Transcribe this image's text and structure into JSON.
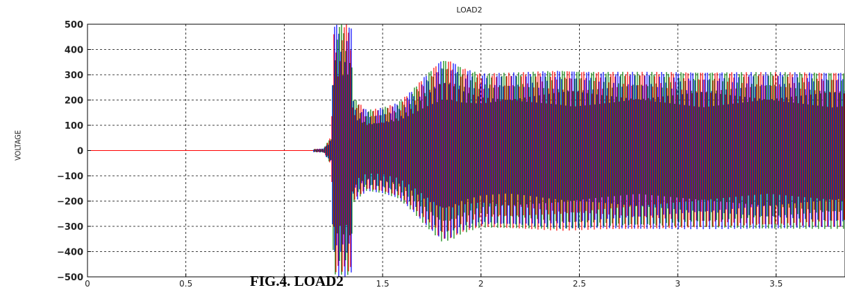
{
  "chart_data": {
    "type": "line",
    "title": "LOAD2",
    "xlabel": "",
    "ylabel": "VOLTAGE",
    "xlim": [
      0,
      3.85
    ],
    "ylim": [
      -500,
      500
    ],
    "x_ticks": [
      0,
      0.5,
      1,
      1.5,
      2,
      2.5,
      3,
      3.5
    ],
    "x_tick_labels": [
      "0",
      "0.5",
      "1",
      "1.5",
      "2",
      "2.5",
      "3",
      "3.5"
    ],
    "y_ticks": [
      500,
      400,
      300,
      200,
      100,
      0,
      -100,
      -200,
      -300,
      -400,
      -500
    ],
    "y_tick_labels": [
      "500",
      "400",
      "300",
      "200",
      "100",
      "0",
      "−100",
      "−200",
      "−300",
      "−400",
      "−500"
    ],
    "grid": true,
    "series_colors": [
      "#0000ff",
      "#008000",
      "#ff0000"
    ],
    "envelope": [
      {
        "t": 0.0,
        "amp": 0
      },
      {
        "t": 1.0,
        "amp": 2
      },
      {
        "t": 1.2,
        "amp": 8
      },
      {
        "t": 1.24,
        "amp": 60
      },
      {
        "t": 1.25,
        "amp": 500
      },
      {
        "t": 1.34,
        "amp": 500
      },
      {
        "t": 1.35,
        "amp": 210
      },
      {
        "t": 1.42,
        "amp": 160
      },
      {
        "t": 1.5,
        "amp": 170
      },
      {
        "t": 1.58,
        "amp": 190
      },
      {
        "t": 1.65,
        "amp": 240
      },
      {
        "t": 1.72,
        "amp": 300
      },
      {
        "t": 1.8,
        "amp": 360
      },
      {
        "t": 1.85,
        "amp": 355
      },
      {
        "t": 1.9,
        "amp": 330
      },
      {
        "t": 2.0,
        "amp": 305
      },
      {
        "t": 2.2,
        "amp": 310
      },
      {
        "t": 2.4,
        "amp": 318
      },
      {
        "t": 2.6,
        "amp": 312
      },
      {
        "t": 3.85,
        "amp": 310
      }
    ],
    "caption": "FIG.4. LOAD2"
  }
}
